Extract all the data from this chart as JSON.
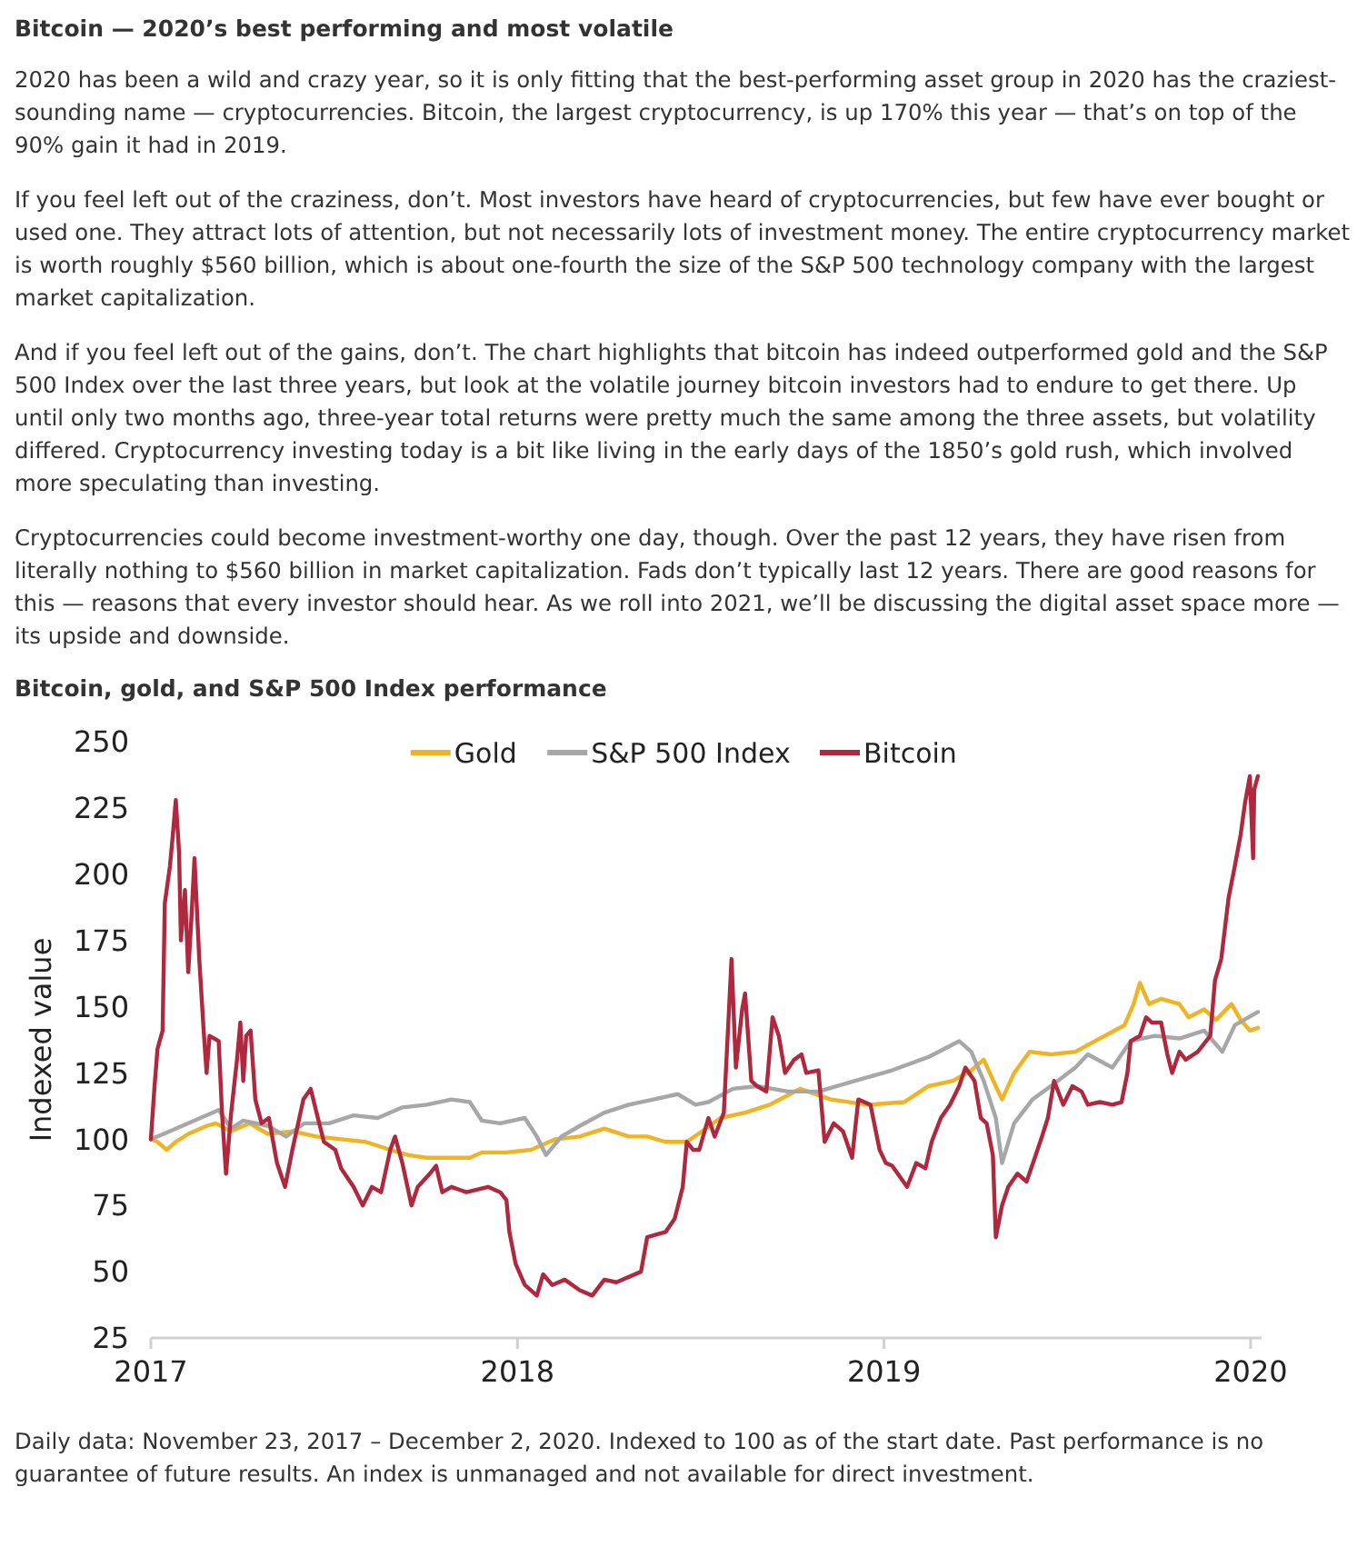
{
  "chart_data": {
    "type": "line",
    "title": "Bitcoin — 2020’s best performing and most volatile",
    "subtitle": "Bitcoin, gold, and S&P 500 Index performance",
    "annotations": [
      "2020 has been a wild and crazy year, so it is only fitting that the best-performing asset group in 2020 has the craziest-sounding name — cryptocurrencies. Bitcoin, the largest cryptocurrency, is up 170% this year — that’s on top of the 90% gain it had in 2019.",
      "If you feel left out of the craziness, don’t. Most investors have heard of cryptocurrencies, but few have ever bought or used one. They attract lots of attention, but not necessarily lots of investment money. The entire cryptocurrency market is worth roughly $560 billion, which is about one-fourth the size of the S&P 500 technology company with the largest market capitalization.",
      "And if you feel left out of the gains, don’t. The chart highlights that bitcoin has indeed outperformed gold and the S&P 500 Index over the last three years, but look at the volatile journey bitcoin investors had to endure to get there. Up until only two months ago, three-year total returns were pretty much the same among the three assets, but volatility differed. Cryptocurrency investing today is a bit like living in the early days of the 1850’s gold rush, which involved more speculating than investing.",
      "Cryptocurrencies could become investment-worthy one day, though. Over the past 12 years, they have risen from literally nothing to $560 billion in market capitalization. Fads don’t typically last 12 years. There are good reasons for this — reasons that every investor should hear. As we roll into 2021, we’ll be discussing the digital asset space more — its upside and downside.",
      "Daily data: November 23, 2017 – December 2, 2020. Indexed to 100 as of the start date. Past performance is no guarantee of future results. An index is unmanaged and not available for direct investment."
    ],
    "ylabel": "Indexed value",
    "xlim": [
      2017,
      2020.03
    ],
    "xticks": [
      2017,
      2018,
      2019,
      2020
    ],
    "ylim": [
      25,
      250
    ],
    "yticks": [
      25,
      50,
      75,
      100,
      125,
      150,
      175,
      200,
      225,
      250
    ],
    "legend": "top",
    "series": [
      {
        "name": "Gold",
        "color": "#f0b323",
        "x": [
          2017,
          2017.018,
          2017.043,
          2017.068,
          2017.102,
          2017.152,
          2017.177,
          2017.219,
          2017.269,
          2017.319,
          2017.386,
          2017.452,
          2017.519,
          2017.586,
          2017.653,
          2017.703,
          2017.753,
          2017.82,
          2017.87,
          2017.903,
          2017.97,
          2018.037,
          2018.104,
          2018.17,
          2018.237,
          2018.304,
          2018.354,
          2018.404,
          2018.462,
          2018.504,
          2018.554,
          2018.621,
          2018.688,
          2018.771,
          2018.855,
          2018.955,
          2019.055,
          2019.121,
          2019.188,
          2019.238,
          2019.272,
          2019.305,
          2019.322,
          2019.355,
          2019.397,
          2019.456,
          2019.522,
          2019.589,
          2019.656,
          2019.681,
          2019.698,
          2019.723,
          2019.756,
          2019.806,
          2019.831,
          2019.873,
          2019.906,
          2019.948,
          2019.973,
          2019.998,
          2020.02
        ],
        "values": [
          100,
          99,
          96,
          99,
          102,
          105,
          106,
          103,
          106,
          102,
          103,
          101,
          100,
          99,
          96,
          94,
          93,
          93,
          93,
          95,
          95,
          96,
          100,
          101,
          104,
          101,
          101,
          99,
          99,
          103,
          108,
          110,
          113,
          119,
          115,
          113,
          114,
          120,
          122,
          126,
          130,
          120,
          115,
          125,
          133,
          132,
          133,
          138,
          143,
          151,
          159,
          151,
          153,
          151,
          146,
          149,
          145,
          151,
          145,
          141,
          142
        ]
      },
      {
        "name": "S&P 500 Index",
        "color": "#a7a7a7",
        "x": [
          2017,
          2017.035,
          2017.085,
          2017.135,
          2017.185,
          2017.219,
          2017.252,
          2017.319,
          2017.369,
          2017.419,
          2017.486,
          2017.553,
          2017.619,
          2017.686,
          2017.753,
          2017.82,
          2017.87,
          2017.903,
          2017.953,
          2018.02,
          2018.053,
          2018.078,
          2018.12,
          2018.17,
          2018.237,
          2018.304,
          2018.371,
          2018.437,
          2018.486,
          2018.521,
          2018.588,
          2018.654,
          2018.738,
          2018.821,
          2018.921,
          2019.022,
          2019.121,
          2019.205,
          2019.238,
          2019.272,
          2019.305,
          2019.322,
          2019.355,
          2019.405,
          2019.455,
          2019.522,
          2019.556,
          2019.623,
          2019.673,
          2019.739,
          2019.806,
          2019.873,
          2019.923,
          2019.957,
          2020.02
        ],
        "values": [
          100,
          102,
          105,
          108,
          111,
          104,
          107,
          105,
          101,
          106,
          106,
          109,
          108,
          112,
          113,
          115,
          114,
          107,
          106,
          108,
          101,
          94,
          101,
          105,
          110,
          113,
          115,
          117,
          113,
          114,
          119,
          120,
          118,
          118,
          122,
          126,
          131,
          137,
          133,
          122,
          108,
          91,
          106,
          115,
          120,
          127,
          132,
          127,
          137,
          139,
          138,
          141,
          133,
          143,
          148
        ]
      },
      {
        "name": "Bitcoin",
        "color": "#b0283e",
        "x": [
          2017,
          2017.01,
          2017.018,
          2017.032,
          2017.038,
          2017.052,
          2017.06,
          2017.068,
          2017.077,
          2017.082,
          2017.093,
          2017.102,
          2017.11,
          2017.119,
          2017.132,
          2017.144,
          2017.152,
          2017.16,
          2017.185,
          2017.194,
          2017.205,
          2017.219,
          2017.235,
          2017.244,
          2017.252,
          2017.26,
          2017.272,
          2017.285,
          2017.302,
          2017.322,
          2017.344,
          2017.366,
          2017.386,
          2017.416,
          2017.436,
          2017.452,
          2017.472,
          2017.503,
          2017.519,
          2017.553,
          2017.578,
          2017.603,
          2017.628,
          2017.653,
          2017.666,
          2017.686,
          2017.711,
          2017.728,
          2017.761,
          2017.778,
          2017.795,
          2017.82,
          2017.861,
          2017.92,
          2017.953,
          2017.97,
          2017.978,
          2017.995,
          2018.02,
          2018.053,
          2018.07,
          2018.095,
          2018.129,
          2018.17,
          2018.204,
          2018.237,
          2018.27,
          2018.337,
          2018.354,
          2018.404,
          2018.429,
          2018.451,
          2018.462,
          2018.479,
          2018.496,
          2018.521,
          2018.538,
          2018.563,
          2018.584,
          2018.596,
          2018.613,
          2018.621,
          2018.638,
          2018.654,
          2018.679,
          2018.696,
          2018.713,
          2018.73,
          2018.755,
          2018.775,
          2018.788,
          2018.821,
          2018.838,
          2018.863,
          2018.888,
          2018.913,
          2018.93,
          2018.963,
          2018.988,
          2019.005,
          2019.022,
          2019.063,
          2019.088,
          2019.113,
          2019.13,
          2019.155,
          2019.18,
          2019.205,
          2019.222,
          2019.247,
          2019.264,
          2019.28,
          2019.297,
          2019.305,
          2019.322,
          2019.339,
          2019.364,
          2019.389,
          2019.414,
          2019.431,
          2019.447,
          2019.464,
          2019.489,
          2019.514,
          2019.539,
          2019.556,
          2019.589,
          2019.623,
          2019.648,
          2019.664,
          2019.673,
          2019.698,
          2019.715,
          2019.731,
          2019.756,
          2019.773,
          2019.786,
          2019.806,
          2019.823,
          2019.856,
          2019.89,
          2019.903,
          2019.92,
          2019.94,
          2019.957,
          2019.973,
          2019.985,
          2019.998,
          2020.007,
          2020.01,
          2020.02
        ],
        "values": [
          100,
          120,
          134,
          141,
          189,
          203,
          215,
          228,
          208,
          175,
          194,
          163,
          182,
          206,
          168,
          141,
          125,
          139,
          137,
          110,
          87,
          110,
          130,
          144,
          122,
          139,
          141,
          115,
          106,
          108,
          91,
          82,
          96,
          115,
          119,
          110,
          99,
          96,
          89,
          82,
          75,
          82,
          80,
          96,
          101,
          91,
          75,
          82,
          87,
          90,
          80,
          82,
          80,
          82,
          80,
          77,
          65,
          53,
          45,
          41,
          49,
          45,
          47,
          43,
          41,
          47,
          46,
          50,
          63,
          65,
          70,
          82,
          99,
          96,
          96,
          108,
          101,
          110,
          168,
          127,
          149,
          155,
          122,
          120,
          118,
          146,
          139,
          125,
          130,
          132,
          125,
          126,
          99,
          106,
          103,
          93,
          115,
          113,
          96,
          91,
          90,
          82,
          91,
          89,
          99,
          108,
          113,
          120,
          127,
          122,
          108,
          106,
          94,
          63,
          75,
          82,
          87,
          84,
          94,
          101,
          108,
          122,
          113,
          120,
          118,
          113,
          114,
          113,
          114,
          125,
          137,
          139,
          146,
          144,
          144,
          132,
          125,
          133,
          130,
          133,
          139,
          160,
          168,
          191,
          203,
          215,
          227,
          237,
          206,
          232,
          237
        ]
      }
    ]
  }
}
